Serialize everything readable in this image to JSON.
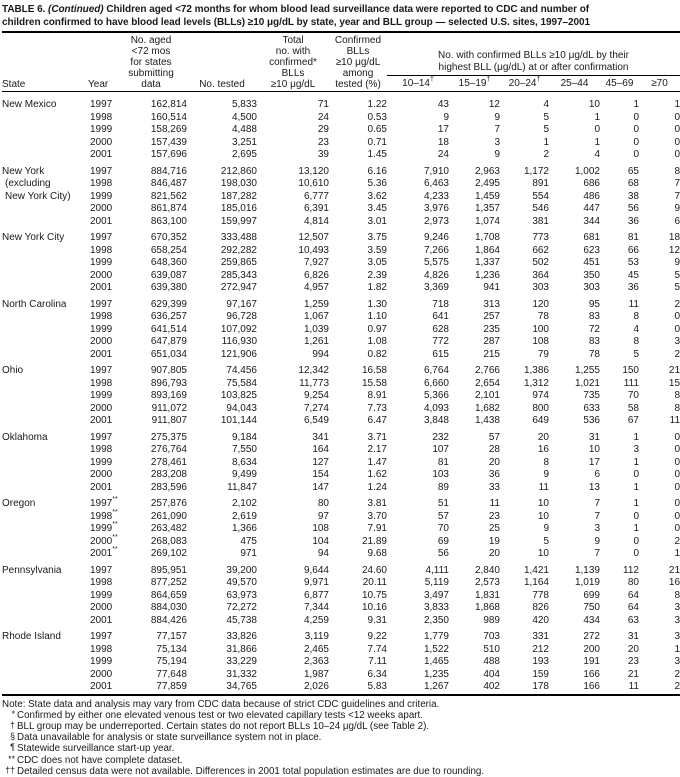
{
  "title": {
    "prefix": "TABLE 6. ",
    "continued": "(Continued) ",
    "text": "Children aged <72 months for whom blood lead surveillance data were reported to CDC and number of\nchildren confirmed to have blood lead levels (BLLs) ≥10 μg/dL by state, year and BLL group — selected U.S. sites, 1997–2001"
  },
  "header": {
    "state": "State",
    "year": "Year",
    "population": "No. aged\n<72 mos\nfor states\nsubmitting\ndata",
    "tested": "No. tested",
    "total_confirmed": "Total\nno. with\nconfirmed*\nBLLs\n≥10 μg/dL",
    "pct": "Confirmed\nBLLs\n≥10 μg/dL\namong\ntested (%)",
    "group": "No. with confirmed BLLs ≥10 μg/dL by their\nhighest BLL (μg/dL) at or after confirmation",
    "bll_cols": [
      {
        "label": "10–14",
        "sup": "†"
      },
      {
        "label": "15–19",
        "sup": "†"
      },
      {
        "label": "20–24",
        "sup": "†"
      },
      {
        "label": "25–44",
        "sup": ""
      },
      {
        "label": "45–69",
        "sup": ""
      },
      {
        "label": "≥70",
        "sup": ""
      }
    ]
  },
  "sections": [
    {
      "state_lines": [
        "New Mexico"
      ],
      "rows": [
        {
          "year": "1997",
          "year_sup": "",
          "values": [
            "162,814",
            "5,833",
            "71",
            "1.22",
            "43",
            "12",
            "4",
            "10",
            "1",
            "1"
          ]
        },
        {
          "year": "1998",
          "year_sup": "",
          "values": [
            "160,514",
            "4,500",
            "24",
            "0.53",
            "9",
            "9",
            "5",
            "1",
            "0",
            "0"
          ]
        },
        {
          "year": "1999",
          "year_sup": "",
          "values": [
            "158,269",
            "4,488",
            "29",
            "0.65",
            "17",
            "7",
            "5",
            "0",
            "0",
            "0"
          ]
        },
        {
          "year": "2000",
          "year_sup": "",
          "values": [
            "157,439",
            "3,251",
            "23",
            "0.71",
            "18",
            "3",
            "1",
            "1",
            "0",
            "0"
          ]
        },
        {
          "year": "2001",
          "year_sup": "",
          "values": [
            "157,696",
            "2,695",
            "39",
            "1.45",
            "24",
            "9",
            "2",
            "4",
            "0",
            "0"
          ]
        }
      ]
    },
    {
      "state_lines": [
        "New York",
        "(excluding",
        "New York City)"
      ],
      "rows": [
        {
          "year": "1997",
          "year_sup": "",
          "values": [
            "884,716",
            "212,860",
            "13,120",
            "6.16",
            "7,910",
            "2,963",
            "1,172",
            "1,002",
            "65",
            "8"
          ]
        },
        {
          "year": "1998",
          "year_sup": "",
          "values": [
            "846,487",
            "198,030",
            "10,610",
            "5.36",
            "6,463",
            "2,495",
            "891",
            "686",
            "68",
            "7"
          ]
        },
        {
          "year": "1999",
          "year_sup": "",
          "values": [
            "821,562",
            "187,282",
            "6,777",
            "3.62",
            "4,233",
            "1,459",
            "554",
            "486",
            "38",
            "7"
          ]
        },
        {
          "year": "2000",
          "year_sup": "",
          "values": [
            "861,874",
            "185,016",
            "6,391",
            "3.45",
            "3,976",
            "1,357",
            "546",
            "447",
            "56",
            "9"
          ]
        },
        {
          "year": "2001",
          "year_sup": "",
          "values": [
            "863,100",
            "159,997",
            "4,814",
            "3.01",
            "2,973",
            "1,074",
            "381",
            "344",
            "36",
            "6"
          ]
        }
      ]
    },
    {
      "state_lines": [
        "New York City"
      ],
      "rows": [
        {
          "year": "1997",
          "year_sup": "",
          "values": [
            "670,352",
            "333,488",
            "12,507",
            "3.75",
            "9,246",
            "1,708",
            "773",
            "681",
            "81",
            "18"
          ]
        },
        {
          "year": "1998",
          "year_sup": "",
          "values": [
            "658,254",
            "292,282",
            "10,493",
            "3.59",
            "7,266",
            "1,864",
            "662",
            "623",
            "66",
            "12"
          ]
        },
        {
          "year": "1999",
          "year_sup": "",
          "values": [
            "648,360",
            "259,865",
            "7,927",
            "3.05",
            "5,575",
            "1,337",
            "502",
            "451",
            "53",
            "9"
          ]
        },
        {
          "year": "2000",
          "year_sup": "",
          "values": [
            "639,087",
            "285,343",
            "6,826",
            "2.39",
            "4,826",
            "1,236",
            "364",
            "350",
            "45",
            "5"
          ]
        },
        {
          "year": "2001",
          "year_sup": "",
          "values": [
            "639,380",
            "272,947",
            "4,957",
            "1.82",
            "3,369",
            "941",
            "303",
            "303",
            "36",
            "5"
          ]
        }
      ]
    },
    {
      "state_lines": [
        "North Carolina"
      ],
      "rows": [
        {
          "year": "1997",
          "year_sup": "",
          "values": [
            "629,399",
            "97,167",
            "1,259",
            "1.30",
            "718",
            "313",
            "120",
            "95",
            "11",
            "2"
          ]
        },
        {
          "year": "1998",
          "year_sup": "",
          "values": [
            "636,257",
            "96,728",
            "1,067",
            "1.10",
            "641",
            "257",
            "78",
            "83",
            "8",
            "0"
          ]
        },
        {
          "year": "1999",
          "year_sup": "",
          "values": [
            "641,514",
            "107,092",
            "1,039",
            "0.97",
            "628",
            "235",
            "100",
            "72",
            "4",
            "0"
          ]
        },
        {
          "year": "2000",
          "year_sup": "",
          "values": [
            "647,879",
            "116,930",
            "1,261",
            "1.08",
            "772",
            "287",
            "108",
            "83",
            "8",
            "3"
          ]
        },
        {
          "year": "2001",
          "year_sup": "",
          "values": [
            "651,034",
            "121,906",
            "994",
            "0.82",
            "615",
            "215",
            "79",
            "78",
            "5",
            "2"
          ]
        }
      ]
    },
    {
      "state_lines": [
        "Ohio"
      ],
      "rows": [
        {
          "year": "1997",
          "year_sup": "",
          "values": [
            "907,805",
            "74,456",
            "12,342",
            "16.58",
            "6,764",
            "2,766",
            "1,386",
            "1,255",
            "150",
            "21"
          ]
        },
        {
          "year": "1998",
          "year_sup": "",
          "values": [
            "896,793",
            "75,584",
            "11,773",
            "15.58",
            "6,660",
            "2,654",
            "1,312",
            "1,021",
            "111",
            "15"
          ]
        },
        {
          "year": "1999",
          "year_sup": "",
          "values": [
            "893,169",
            "103,825",
            "9,254",
            "8.91",
            "5,366",
            "2,101",
            "974",
            "735",
            "70",
            "8"
          ]
        },
        {
          "year": "2000",
          "year_sup": "",
          "values": [
            "911,072",
            "94,043",
            "7,274",
            "7.73",
            "4,093",
            "1,682",
            "800",
            "633",
            "58",
            "8"
          ]
        },
        {
          "year": "2001",
          "year_sup": "",
          "values": [
            "911,807",
            "101,144",
            "6,549",
            "6.47",
            "3,848",
            "1,438",
            "649",
            "536",
            "67",
            "11"
          ]
        }
      ]
    },
    {
      "state_lines": [
        "Oklahoma"
      ],
      "rows": [
        {
          "year": "1997",
          "year_sup": "",
          "values": [
            "275,375",
            "9,184",
            "341",
            "3.71",
            "232",
            "57",
            "20",
            "31",
            "1",
            "0"
          ]
        },
        {
          "year": "1998",
          "year_sup": "",
          "values": [
            "276,764",
            "7,550",
            "164",
            "2.17",
            "107",
            "28",
            "16",
            "10",
            "3",
            "0"
          ]
        },
        {
          "year": "1999",
          "year_sup": "",
          "values": [
            "278,461",
            "8,634",
            "127",
            "1.47",
            "81",
            "20",
            "8",
            "17",
            "1",
            "0"
          ]
        },
        {
          "year": "2000",
          "year_sup": "",
          "values": [
            "283,208",
            "9,499",
            "154",
            "1.62",
            "103",
            "36",
            "9",
            "6",
            "0",
            "0"
          ]
        },
        {
          "year": "2001",
          "year_sup": "",
          "values": [
            "283,596",
            "11,847",
            "147",
            "1.24",
            "89",
            "33",
            "11",
            "13",
            "1",
            "0"
          ]
        }
      ]
    },
    {
      "state_lines": [
        "Oregon"
      ],
      "rows": [
        {
          "year": "1997",
          "year_sup": "**",
          "values": [
            "257,876",
            "2,102",
            "80",
            "3.81",
            "51",
            "11",
            "10",
            "7",
            "1",
            "0"
          ]
        },
        {
          "year": "1998",
          "year_sup": "**",
          "values": [
            "261,090",
            "2,619",
            "97",
            "3.70",
            "57",
            "23",
            "10",
            "7",
            "0",
            "0"
          ]
        },
        {
          "year": "1999",
          "year_sup": "**",
          "values": [
            "263,482",
            "1,366",
            "108",
            "7.91",
            "70",
            "25",
            "9",
            "3",
            "1",
            "0"
          ]
        },
        {
          "year": "2000",
          "year_sup": "**",
          "values": [
            "268,083",
            "475",
            "104",
            "21.89",
            "69",
            "19",
            "5",
            "9",
            "0",
            "2"
          ]
        },
        {
          "year": "2001",
          "year_sup": "**",
          "values": [
            "269,102",
            "971",
            "94",
            "9.68",
            "56",
            "20",
            "10",
            "7",
            "0",
            "1"
          ]
        }
      ]
    },
    {
      "state_lines": [
        "Pennsylvania"
      ],
      "rows": [
        {
          "year": "1997",
          "year_sup": "",
          "values": [
            "895,951",
            "39,200",
            "9,644",
            "24.60",
            "4,111",
            "2,840",
            "1,421",
            "1,139",
            "112",
            "21"
          ]
        },
        {
          "year": "1998",
          "year_sup": "",
          "values": [
            "877,252",
            "49,570",
            "9,971",
            "20.11",
            "5,119",
            "2,573",
            "1,164",
            "1,019",
            "80",
            "16"
          ]
        },
        {
          "year": "1999",
          "year_sup": "",
          "values": [
            "864,659",
            "63,973",
            "6,877",
            "10.75",
            "3,497",
            "1,831",
            "778",
            "699",
            "64",
            "8"
          ]
        },
        {
          "year": "2000",
          "year_sup": "",
          "values": [
            "884,030",
            "72,272",
            "7,344",
            "10.16",
            "3,833",
            "1,868",
            "826",
            "750",
            "64",
            "3"
          ]
        },
        {
          "year": "2001",
          "year_sup": "",
          "values": [
            "884,426",
            "45,738",
            "4,259",
            "9.31",
            "2,350",
            "989",
            "420",
            "434",
            "63",
            "3"
          ]
        }
      ]
    },
    {
      "state_lines": [
        "Rhode Island"
      ],
      "rows": [
        {
          "year": "1997",
          "year_sup": "",
          "values": [
            "77,157",
            "33,826",
            "3,119",
            "9.22",
            "1,779",
            "703",
            "331",
            "272",
            "31",
            "3"
          ]
        },
        {
          "year": "1998",
          "year_sup": "",
          "values": [
            "75,134",
            "31,866",
            "2,465",
            "7.74",
            "1,522",
            "510",
            "212",
            "200",
            "20",
            "1"
          ]
        },
        {
          "year": "1999",
          "year_sup": "",
          "values": [
            "75,194",
            "33,229",
            "2,363",
            "7.11",
            "1,465",
            "488",
            "193",
            "191",
            "23",
            "3"
          ]
        },
        {
          "year": "2000",
          "year_sup": "",
          "values": [
            "77,648",
            "31,332",
            "1,987",
            "6.34",
            "1,235",
            "404",
            "159",
            "166",
            "21",
            "2"
          ]
        },
        {
          "year": "2001",
          "year_sup": "",
          "values": [
            "77,859",
            "34,765",
            "2,026",
            "5.83",
            "1,267",
            "402",
            "178",
            "166",
            "11",
            "2"
          ]
        }
      ]
    }
  ],
  "footnotes": [
    {
      "marker": "",
      "text": "Note: State data and analysis may vary from CDC data because of strict CDC guidelines and criteria."
    },
    {
      "marker": "*",
      "text": "Confirmed by either one elevated venous test or two elevated capillary tests <12 weeks apart."
    },
    {
      "marker": "†",
      "text": "BLL group may be underreported. Certain states do not report BLLs 10–24 μg/dL (see Table 2)."
    },
    {
      "marker": "§",
      "text": "Data unavailable for analysis or state surveillance system not in place."
    },
    {
      "marker": "¶",
      "text": "Statewide surveillance start-up year."
    },
    {
      "marker": "**",
      "text": "CDC does not have complete dataset."
    },
    {
      "marker": "††",
      "text": "Detailed census data were not available. Differences in 2001 total population estimates are due to rounding."
    }
  ]
}
